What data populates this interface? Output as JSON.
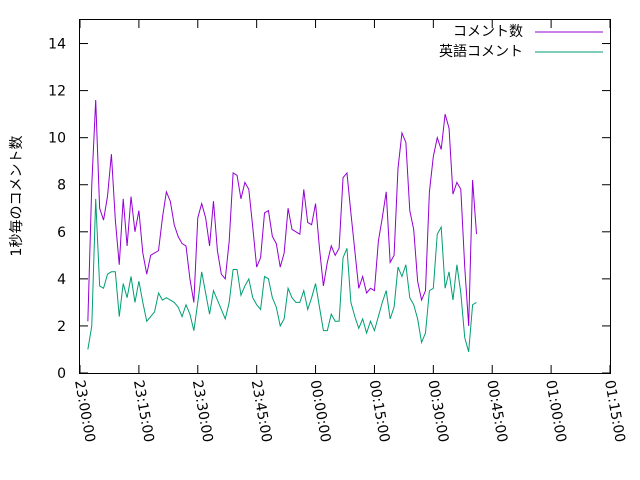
{
  "chart_data": {
    "type": "line",
    "title": "",
    "ylabel": "1秒毎のコメント数",
    "xlabel": "",
    "xlim": [
      "23:00:00",
      "01:15:00"
    ],
    "ylim": [
      0,
      15
    ],
    "x_ticks": [
      "23:00:00",
      "23:15:00",
      "23:30:00",
      "23:45:00",
      "00:00:00",
      "00:15:00",
      "00:30:00",
      "00:45:00",
      "01:00:00",
      "01:15:00"
    ],
    "y_ticks": [
      0,
      2,
      4,
      6,
      8,
      10,
      12,
      14
    ],
    "x_step_minutes": 1,
    "grid": false,
    "legend_position": "top-right",
    "series": [
      {
        "name": "コメント数",
        "color": "#9400d3",
        "values": [
          2.2,
          8.0,
          11.6,
          7.0,
          6.5,
          7.5,
          9.3,
          6.5,
          4.6,
          7.4,
          5.4,
          7.5,
          6.0,
          6.9,
          5.1,
          4.2,
          5.0,
          5.1,
          5.2,
          6.6,
          7.7,
          7.3,
          6.3,
          5.8,
          5.5,
          5.4,
          4.0,
          3.0,
          6.6,
          7.2,
          6.6,
          5.4,
          7.3,
          5.2,
          4.2,
          4.0,
          5.6,
          8.5,
          8.4,
          7.4,
          8.1,
          7.8,
          6.2,
          4.5,
          4.9,
          6.8,
          6.9,
          5.8,
          5.5,
          4.5,
          5.1,
          7.0,
          6.1,
          6.0,
          5.9,
          7.8,
          6.4,
          6.3,
          7.2,
          5.3,
          3.7,
          4.7,
          5.4,
          5.0,
          5.3,
          8.3,
          8.5,
          6.8,
          5.2,
          3.6,
          4.1,
          3.4,
          3.6,
          3.5,
          5.6,
          6.6,
          7.7,
          4.7,
          5.0,
          8.7,
          10.2,
          9.8,
          6.9,
          6.1,
          3.9,
          3.1,
          3.5,
          7.7,
          9.2,
          10.0,
          9.5,
          11.0,
          10.4,
          7.6,
          8.1,
          7.8,
          4.5,
          2.0,
          8.2,
          5.9
        ]
      },
      {
        "name": "英語コメント",
        "color": "#009e73",
        "values": [
          1.0,
          2.0,
          7.4,
          3.7,
          3.6,
          4.2,
          4.3,
          4.3,
          2.4,
          3.8,
          3.2,
          4.1,
          3.0,
          3.9,
          3.0,
          2.2,
          2.4,
          2.6,
          3.4,
          3.1,
          3.2,
          3.1,
          3.0,
          2.8,
          2.4,
          2.9,
          2.5,
          1.8,
          3.0,
          4.3,
          3.4,
          2.5,
          3.5,
          3.1,
          2.7,
          2.3,
          3.0,
          4.4,
          4.4,
          3.3,
          3.7,
          4.0,
          3.2,
          2.9,
          2.7,
          4.1,
          4.0,
          3.2,
          2.8,
          2.0,
          2.3,
          3.6,
          3.2,
          3.0,
          3.0,
          3.5,
          2.7,
          3.2,
          3.8,
          2.8,
          1.8,
          1.8,
          2.5,
          2.2,
          2.2,
          4.9,
          5.3,
          3.0,
          2.4,
          1.9,
          2.3,
          1.7,
          2.2,
          1.8,
          2.4,
          3.0,
          3.5,
          2.3,
          2.8,
          4.5,
          4.1,
          4.6,
          3.2,
          2.9,
          2.3,
          1.3,
          1.7,
          3.5,
          3.6,
          5.9,
          6.2,
          3.6,
          4.3,
          3.1,
          4.6,
          3.4,
          1.5,
          0.9,
          2.9,
          3.0
        ]
      }
    ]
  }
}
